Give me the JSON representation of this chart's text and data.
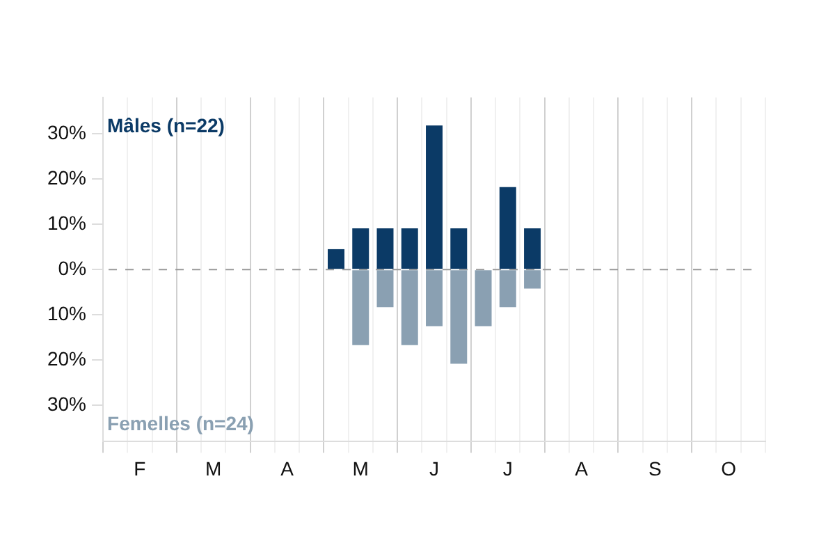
{
  "chart_data": {
    "type": "bar",
    "stacked": true,
    "categories": [
      null,
      "F",
      null,
      null,
      "M",
      null,
      null,
      "A",
      null,
      null,
      "M",
      null,
      null,
      "J",
      null,
      null,
      "J",
      null,
      null,
      "A",
      null,
      null,
      "S",
      null,
      null,
      "O",
      null
    ],
    "series": [
      {
        "name": "Mâles (n=22)",
        "color": "#0b3a66",
        "values": [
          0,
          0,
          0,
          0,
          0,
          0,
          0,
          0,
          0,
          4.5,
          9.1,
          9.1,
          9.1,
          31.8,
          9.1,
          0,
          18.2,
          9.1,
          0,
          0,
          0,
          0,
          0,
          0,
          0,
          0,
          0
        ]
      },
      {
        "name": "Femelles (n=24)",
        "color": "#8aa0b2",
        "values": [
          0,
          0,
          0,
          0,
          0,
          0,
          0,
          0,
          0,
          0,
          -16.7,
          -8.3,
          -16.7,
          -12.5,
          -20.8,
          -12.5,
          -8.3,
          -4.2,
          0,
          0,
          0,
          0,
          0,
          0,
          0,
          0,
          0
        ]
      }
    ],
    "ylim": [
      -38,
      38
    ],
    "yticks": [
      {
        "value": -30,
        "label": "30%"
      },
      {
        "value": -20,
        "label": "20%"
      },
      {
        "value": -10,
        "label": "10%"
      },
      {
        "value": 0,
        "label": "0%"
      },
      {
        "value": 10,
        "label": "10%"
      },
      {
        "value": 20,
        "label": "20%"
      },
      {
        "value": 30,
        "label": "30%"
      }
    ],
    "grid": "x",
    "legend": false,
    "ref_lines": [
      {
        "axis": "y",
        "value": 0,
        "color": "#999999",
        "line_style": "dashed"
      }
    ]
  }
}
